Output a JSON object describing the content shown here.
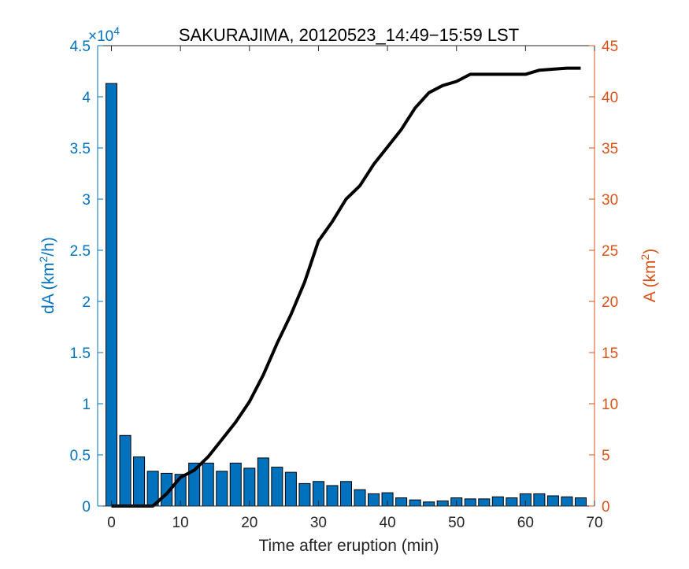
{
  "chart_data": {
    "type": "bar+line",
    "title": "SAKURAJIMA, 20120523_14:49−15:59 LST",
    "xlabel": "Time after eruption (min)",
    "ylabel_left_main": "dA (km",
    "ylabel_left_sup": "2",
    "ylabel_left_tail": "/h)",
    "ylabel_right_main": "A (km",
    "ylabel_right_sup": "2",
    "ylabel_right_tail": ")",
    "left_exponent_base": "×10",
    "left_exponent_power": "4",
    "xlim": [
      -2,
      70
    ],
    "ylim_left": [
      0,
      4.5
    ],
    "ylim_right": [
      0,
      45
    ],
    "x_ticks": [
      "0",
      "10",
      "20",
      "30",
      "40",
      "50",
      "60",
      "70"
    ],
    "x_tick_values": [
      0,
      10,
      20,
      30,
      40,
      50,
      60,
      70
    ],
    "left_ticks": [
      "0",
      "0.5",
      "1",
      "1.5",
      "2",
      "2.5",
      "3",
      "3.5",
      "4",
      "4.5"
    ],
    "left_tick_values": [
      0,
      0.5,
      1,
      1.5,
      2,
      2.5,
      3,
      3.5,
      4,
      4.5
    ],
    "right_ticks": [
      "0",
      "5",
      "10",
      "15",
      "20",
      "25",
      "30",
      "35",
      "40",
      "45"
    ],
    "right_tick_values": [
      0,
      5,
      10,
      15,
      20,
      25,
      30,
      35,
      40,
      45
    ],
    "colors": {
      "left_axis": "#0072BD",
      "right_axis": "#D95319",
      "bars": "#0072BD",
      "bar_edge": "#000000",
      "line": "#000000",
      "axes": "#262626"
    },
    "bars": {
      "name": "dA",
      "unit_scale": 10000,
      "x": [
        0,
        2,
        4,
        6,
        8,
        10,
        12,
        14,
        16,
        18,
        20,
        22,
        24,
        26,
        28,
        30,
        32,
        34,
        36,
        38,
        40,
        42,
        44,
        46,
        48,
        50,
        52,
        54,
        56,
        58,
        60,
        62,
        64,
        66,
        68
      ],
      "values": [
        4.13,
        0.69,
        0.48,
        0.34,
        0.32,
        0.31,
        0.42,
        0.42,
        0.34,
        0.42,
        0.37,
        0.47,
        0.38,
        0.33,
        0.22,
        0.24,
        0.2,
        0.24,
        0.16,
        0.12,
        0.13,
        0.08,
        0.06,
        0.04,
        0.05,
        0.08,
        0.07,
        0.07,
        0.09,
        0.08,
        0.12,
        0.12,
        0.1,
        0.09,
        0.08
      ]
    },
    "line": {
      "name": "A",
      "x": [
        0,
        6,
        8,
        10,
        12,
        14,
        16,
        18,
        20,
        22,
        24,
        26,
        28,
        30,
        32,
        34,
        36,
        38,
        40,
        42,
        44,
        46,
        48,
        50,
        52,
        54,
        56,
        58,
        60,
        62,
        64,
        66,
        68
      ],
      "values": [
        0,
        0,
        1.2,
        2.8,
        3.5,
        4.8,
        6.5,
        8.2,
        10.2,
        12.8,
        15.9,
        18.7,
        21.9,
        25.9,
        27.8,
        30.0,
        31.3,
        33.4,
        35.1,
        36.8,
        38.9,
        40.4,
        41.1,
        41.5,
        42.2,
        42.2,
        42.2,
        42.2,
        42.2,
        42.6,
        42.7,
        42.8,
        42.8
      ]
    }
  }
}
